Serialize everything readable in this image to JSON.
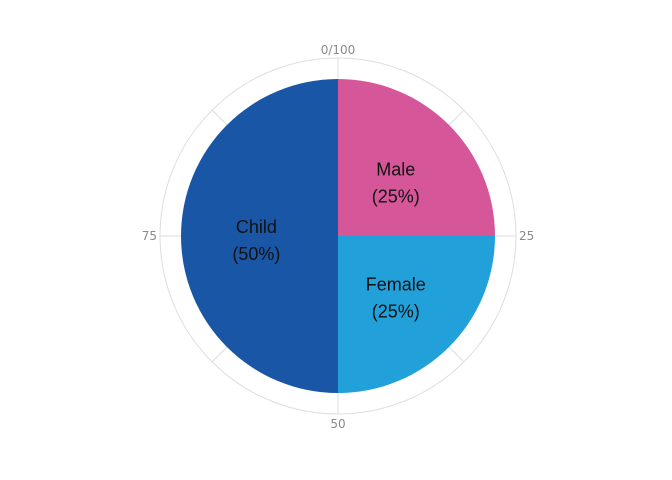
{
  "chart_data": {
    "type": "pie",
    "title": "",
    "slices": [
      {
        "label": "Male",
        "value": 25,
        "percent_label": "(25%)",
        "color": "#d6569a"
      },
      {
        "label": "Female",
        "value": 25,
        "percent_label": "(25%)",
        "color": "#22a0da"
      },
      {
        "label": "Child",
        "value": 50,
        "percent_label": "(50%)",
        "color": "#1a56a6"
      }
    ],
    "polar_ticks": [
      {
        "value": 0,
        "label": "0/100"
      },
      {
        "value": 25,
        "label": "25"
      },
      {
        "value": 50,
        "label": "50"
      },
      {
        "value": 75,
        "label": "75"
      }
    ],
    "grid_color": "#dedede",
    "tick_color": "#8a8a8a"
  }
}
